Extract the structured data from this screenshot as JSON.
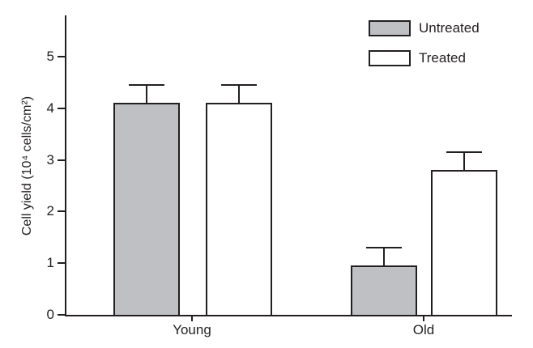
{
  "chart_data": {
    "type": "bar",
    "title": "",
    "categories": [
      "Young",
      "Old"
    ],
    "series": [
      {
        "name": "Untreated",
        "color": "#bfc0c4",
        "values": [
          4.1,
          0.95
        ],
        "errors": [
          0.35,
          0.35
        ]
      },
      {
        "name": "Treated",
        "color": "#ffffff",
        "values": [
          4.1,
          2.8
        ],
        "errors": [
          0.35,
          0.35
        ]
      }
    ],
    "xlabel": "",
    "ylabel": "Cell yield (10⁴ cells/cm²)",
    "yticks": [
      "0",
      "1",
      "2",
      "3",
      "4",
      "5"
    ],
    "ylim": [
      0,
      5.8
    ],
    "grid": false,
    "legend_position": "top-right",
    "error_bars": "upper"
  },
  "colors": {
    "axis": "#231f20",
    "text": "#231f20",
    "untreated_fill": "#bfc0c4",
    "treated_fill": "#ffffff",
    "background": "#ffffff"
  }
}
